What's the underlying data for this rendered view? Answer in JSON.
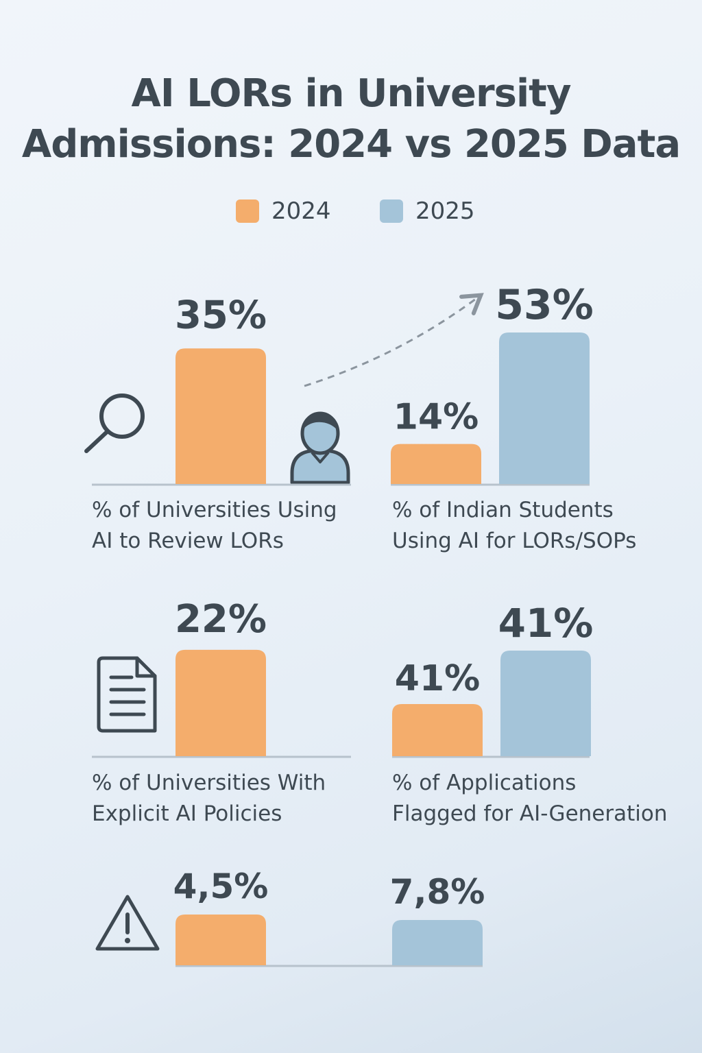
{
  "title_lines": [
    "AI LORs in University",
    "Admissions: 2024 vs 2025 Data"
  ],
  "legend": [
    {
      "label": "2024",
      "color": "#f4ad6c"
    },
    {
      "label": "2025",
      "color": "#a4c4d9"
    }
  ],
  "icons": [
    "magnifier-icon",
    "person-icon",
    "document-icon",
    "warning-icon",
    "trend-arrow"
  ],
  "chart_data": [
    {
      "type": "bar",
      "caption_lines": [
        "% of Universities Using",
        "AI to Review LORs"
      ],
      "series": [
        {
          "name": "2024",
          "values": [
            35
          ]
        }
      ],
      "value_labels": [
        "35%"
      ],
      "unit": "%"
    },
    {
      "type": "bar",
      "caption_lines": [
        "% of Indian Students",
        "Using AI for LORs/SOPs"
      ],
      "series": [
        {
          "name": "2024",
          "values": [
            14
          ]
        },
        {
          "name": "2025",
          "values": [
            53
          ]
        }
      ],
      "value_labels": [
        "14%",
        "53%"
      ],
      "unit": "%"
    },
    {
      "type": "bar",
      "caption_lines": [
        "% of Universities With",
        "Explicit AI Policies"
      ],
      "series": [
        {
          "name": "2024",
          "values": [
            22
          ]
        }
      ],
      "value_labels": [
        "22%"
      ],
      "unit": "%"
    },
    {
      "type": "bar",
      "caption_lines": [
        "% of Applications",
        "Flagged for AI-Generation"
      ],
      "series": [
        {
          "name": "2024",
          "values": [
            41
          ]
        },
        {
          "name": "2025",
          "values": [
            41
          ]
        }
      ],
      "value_labels": [
        "41%",
        "41%"
      ],
      "unit": "%"
    },
    {
      "type": "bar",
      "caption_lines": [],
      "series": [
        {
          "name": "2024",
          "values": [
            4.5
          ]
        },
        {
          "name": "2025",
          "values": [
            7.8
          ]
        }
      ],
      "value_labels": [
        "4,5%",
        "7,8%"
      ],
      "unit": "%"
    }
  ]
}
